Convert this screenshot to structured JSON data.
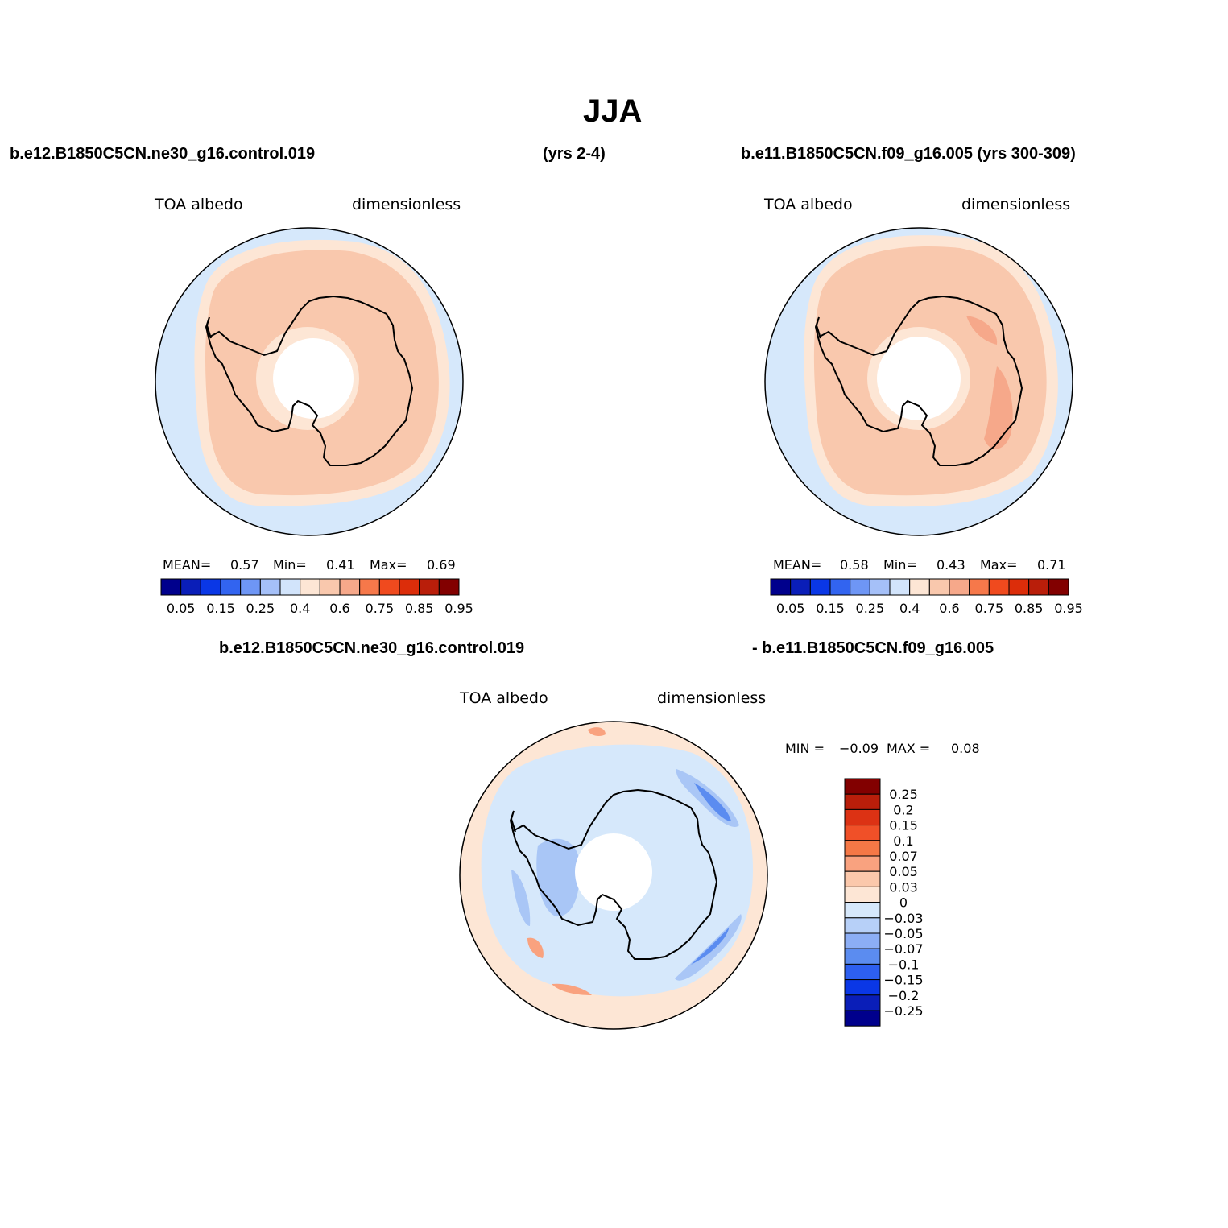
{
  "page": {
    "title": "JJA",
    "top_left_header": "b.e12.B1850C5CN.ne30_g16.control.019",
    "top_mid_header": "(yrs 2-4)",
    "top_right_header": "b.e11.B1850C5CN.f09_g16.005 (yrs 300-309)",
    "diff_header_left": "b.e12.B1850C5CN.ne30_g16.control.019",
    "diff_header_right": "- b.e11.B1850C5CN.f09_g16.005"
  },
  "colors": {
    "map_background": "#d6e8fb",
    "sea_ice_edge": "#fde6d5",
    "ice_interior": "#f9c8ad",
    "ice_high": "#f6a88a",
    "pole_hole": "#ffffff",
    "diff_negative": "#a9c6f6",
    "diff_negative_strong": "#5b8cf0",
    "diff_positive": "#f9a27f"
  },
  "panels": [
    {
      "id": "left",
      "variable": "TOA  albedo",
      "units": "dimensionless",
      "stats": {
        "mean_label": "MEAN=",
        "mean": "0.57",
        "min_label": "Min=",
        "min": "0.41",
        "max_label": "Max=",
        "max": "0.69"
      }
    },
    {
      "id": "right",
      "variable": "TOA  albedo",
      "units": "dimensionless",
      "stats": {
        "mean_label": "MEAN=",
        "mean": "0.58",
        "min_label": "Min=",
        "min": "0.43",
        "max_label": "Max=",
        "max": "0.71"
      }
    },
    {
      "id": "diff",
      "variable": "TOA  albedo",
      "units": "dimensionless",
      "stats": {
        "min_label": "MIN =",
        "min": "−0.09",
        "max_label": "MAX =",
        "max": "0.08"
      }
    }
  ],
  "colorbar_horizontal": {
    "colors": [
      "#00008c",
      "#0a1eb8",
      "#0a37e6",
      "#3264f0",
      "#6e96f5",
      "#a5c0f8",
      "#d2e4fb",
      "#fde6d5",
      "#f9c8ad",
      "#f6a88a",
      "#f6784a",
      "#f04a1e",
      "#dc2d0a",
      "#b91e0a",
      "#820000"
    ],
    "tick_labels": [
      "0.05",
      "0.15",
      "0.25",
      "0.4",
      "0.6",
      "0.75",
      "0.85",
      "0.95"
    ]
  },
  "colorbar_vertical": {
    "colors_top_to_bottom": [
      "#820000",
      "#b91e0a",
      "#dc3214",
      "#f05028",
      "#f57846",
      "#f9a27f",
      "#fbc8ab",
      "#fde6d5",
      "#d6e8fb",
      "#b7d0f8",
      "#8caef5",
      "#5b8cf0",
      "#2d5ff0",
      "#0a37e6",
      "#0a1eb8",
      "#00008c"
    ],
    "tick_labels_top_to_bottom": [
      "0.25",
      "0.2",
      "0.15",
      "0.1",
      "0.07",
      "0.05",
      "0.03",
      "0",
      "−0.03",
      "−0.05",
      "−0.07",
      "−0.1",
      "−0.15",
      "−0.2",
      "−0.25"
    ]
  }
}
